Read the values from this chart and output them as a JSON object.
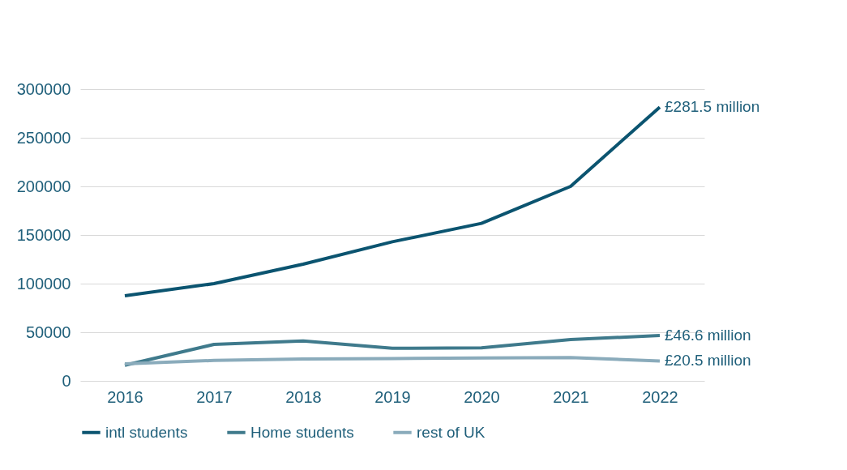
{
  "chart_data": {
    "type": "line",
    "categories": [
      "2016",
      "2017",
      "2018",
      "2019",
      "2020",
      "2021",
      "2022"
    ],
    "series": [
      {
        "name": "intl students",
        "color": "#0b5470",
        "values": [
          87500,
          100000,
          120000,
          143000,
          162000,
          200000,
          281500
        ]
      },
      {
        "name": "Home students",
        "color": "#3f7a8c",
        "values": [
          16000,
          37500,
          41000,
          33500,
          34000,
          42500,
          46600
        ]
      },
      {
        "name": "rest of UK",
        "color": "#8aabbb",
        "values": [
          17500,
          21000,
          22500,
          23000,
          23500,
          24000,
          20500
        ]
      }
    ],
    "ylim": [
      0,
      300000
    ],
    "yticks": [
      0,
      50000,
      100000,
      150000,
      200000,
      250000,
      300000
    ],
    "grid": "y",
    "legend": "bottom",
    "marker": "none",
    "line_style": "solid",
    "annotations": [
      {
        "text": "£281.5 million",
        "x": "2022",
        "y": 281500
      },
      {
        "text": "£46.6 million",
        "x": "2022",
        "y": 46600
      },
      {
        "text": "£20.5 million",
        "x": "2022",
        "y": 20500
      }
    ]
  }
}
